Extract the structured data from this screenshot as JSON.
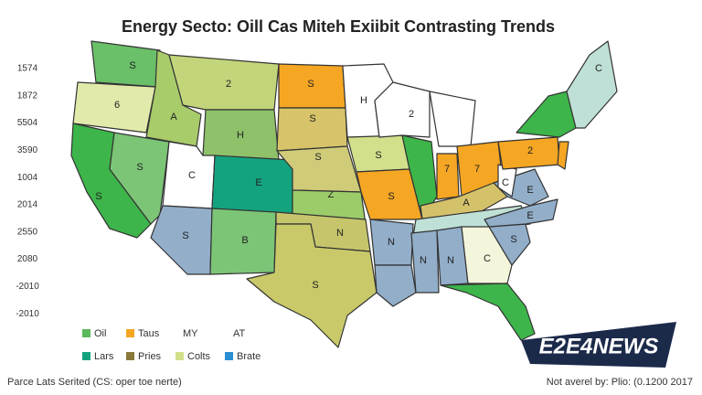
{
  "title": "Energy Secto: Oill Cas Miteh Exiibit Contrasting Trends",
  "side_labels": [
    "1574",
    "1872",
    "5504",
    "3590",
    "1004",
    "2014",
    "2550",
    "2080",
    "-2010",
    "-2010"
  ],
  "regions": [
    {
      "label": "S",
      "color": "#6abf69"
    },
    {
      "label": "6",
      "color": "#e2eaab"
    },
    {
      "label": "S",
      "color": "#3db54a"
    },
    {
      "label": "S",
      "color": "#7cc576"
    },
    {
      "label": "A",
      "color": "#a9cc6a"
    },
    {
      "label": "2",
      "color": "#c3d57a"
    },
    {
      "label": "H",
      "color": "#8fc16a"
    },
    {
      "label": "C",
      "color": "#ffffff"
    },
    {
      "label": "E",
      "color": "#14a37f"
    },
    {
      "label": "S",
      "color": "#92aec9"
    },
    {
      "label": "B",
      "color": "#7cc576"
    },
    {
      "label": "S",
      "color": "#f5a623"
    },
    {
      "label": "S",
      "color": "#d7c46a"
    },
    {
      "label": "S",
      "color": "#cfcb78"
    },
    {
      "label": "Z",
      "color": "#9ccc6a"
    },
    {
      "label": "N",
      "color": "#c6c56b"
    },
    {
      "label": "S",
      "color": "#c9c96a"
    },
    {
      "label": "H",
      "color": "#ffffff"
    },
    {
      "label": "S",
      "color": "#d2e08c"
    },
    {
      "label": "S",
      "color": "#f5a623"
    },
    {
      "label": "2",
      "color": "#ffffff"
    },
    {
      "color": "#ffffff"
    },
    {
      "color": "#3db54a"
    },
    {
      "label": "7",
      "color": "#f5a623"
    },
    {
      "label": "7",
      "color": "#f5a623"
    },
    {
      "label": "A",
      "color": "#d4c26a"
    },
    {
      "color": "#bfe0d6"
    },
    {
      "label": "N",
      "color": "#92aec9"
    },
    {
      "color": "#92aec9"
    },
    {
      "label": "N",
      "color": "#92aec9"
    },
    {
      "label": "N",
      "color": "#92aec9"
    },
    {
      "label": "C",
      "color": "#f4f6dc"
    },
    {
      "color": "#3db54a"
    },
    {
      "label": "S",
      "color": "#92aec9"
    },
    {
      "label": "E",
      "color": "#92aec9"
    },
    {
      "label": "E",
      "color": "#92aec9"
    },
    {
      "label": "C",
      "color": "#ffffff"
    },
    {
      "label": "2",
      "color": "#f5a623"
    },
    {
      "color": "#3db54a"
    },
    {
      "color": "#f5a623"
    },
    {
      "label": "C",
      "color": "#bfe0d6"
    }
  ],
  "legend": [
    {
      "name": "Oil",
      "color": "#5cb85c"
    },
    {
      "name": "Taus",
      "color": "#f5a623"
    },
    {
      "name": "MY"
    },
    {
      "name": "AT"
    },
    {
      "name": "Lars",
      "color": "#14a37f"
    },
    {
      "name": "Pries",
      "color": "#8a7a3a"
    },
    {
      "name": "Colts",
      "color": "#d2e08c"
    },
    {
      "name": "Brate",
      "color": "#2a8fd0"
    }
  ],
  "source": "Parce Lats Serited (CS: oper toe nerte)",
  "credit": "Not averel by: Plio: (0.1200 2017",
  "logo": "E2E4NEWS"
}
